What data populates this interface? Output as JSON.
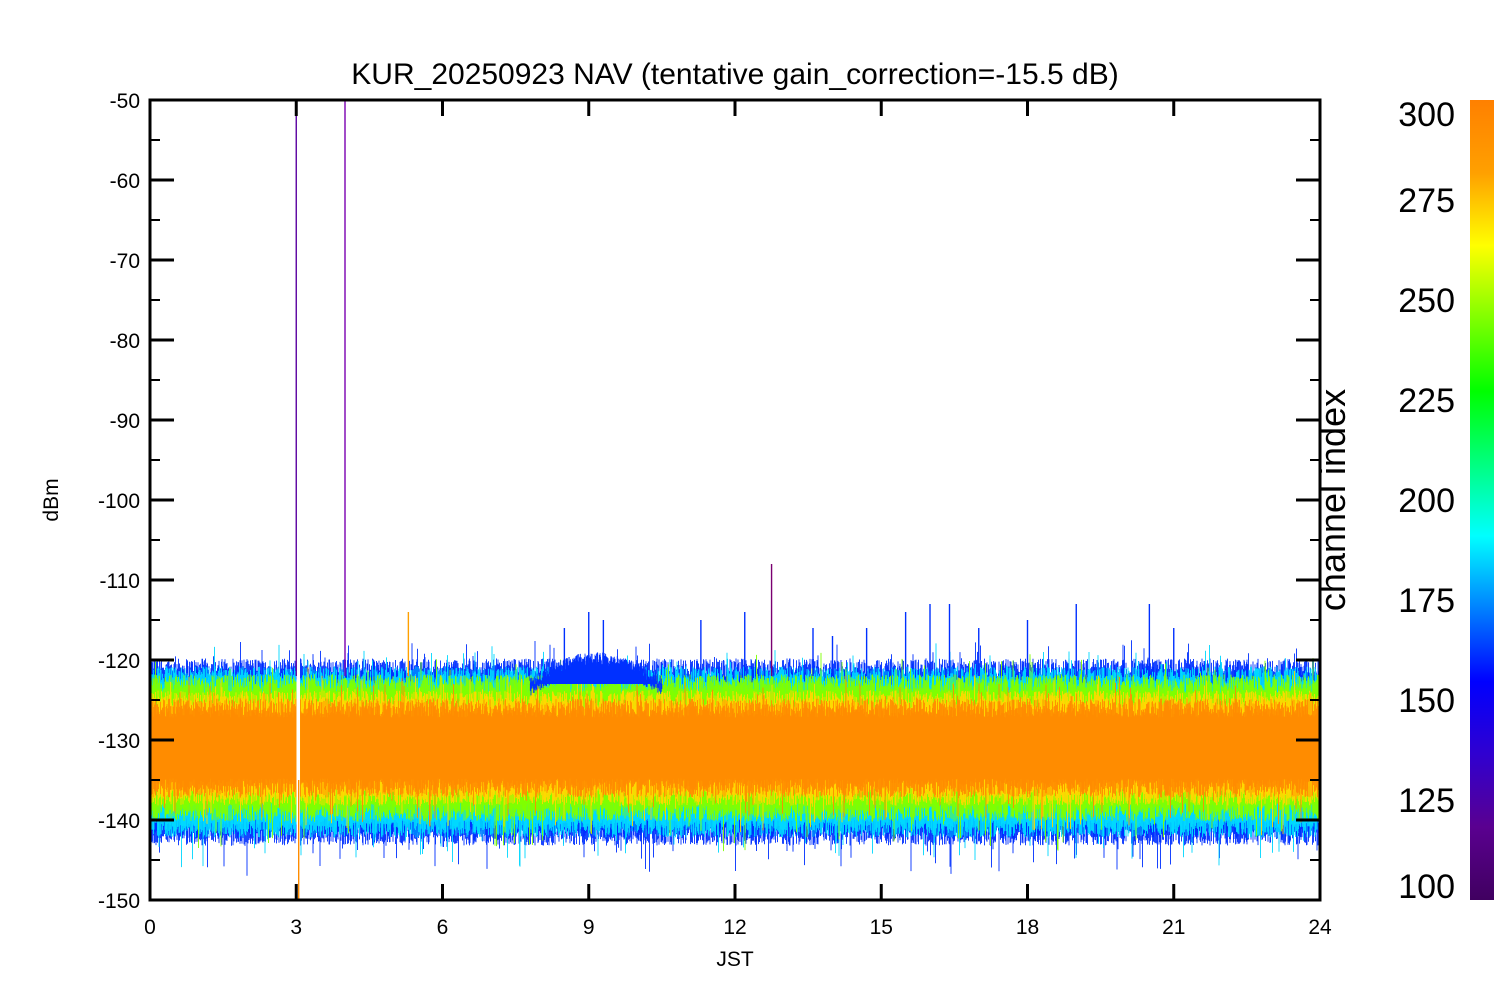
{
  "chart_data": {
    "type": "line",
    "title": "KUR_20250923 NAV (tentative gain_correction=-15.5 dB)",
    "xlabel": "JST",
    "ylabel": "dBm",
    "xlim": [
      0,
      24
    ],
    "ylim": [
      -150,
      -50
    ],
    "xticks": [
      "0",
      "3",
      "6",
      "9",
      "12",
      "15",
      "18",
      "21",
      "24"
    ],
    "yticks": [
      "-50",
      "-60",
      "-70",
      "-80",
      "-90",
      "-100",
      "-110",
      "-120",
      "-130",
      "-140",
      "-150"
    ],
    "grid": false,
    "bands": [
      {
        "name": "channel ~300 (orange core)",
        "color": "#ff8c00",
        "y_low": -136,
        "y_high": -126
      },
      {
        "name": "channel ~275 (yellow)",
        "color": "#ffd800",
        "y_low": -137,
        "y_high": -125
      },
      {
        "name": "channel ~250 (green)",
        "color": "#7fff00",
        "y_low": -139,
        "y_high": -123
      },
      {
        "name": "channel ~175 (cyan)",
        "color": "#00d8ff",
        "y_low": -141,
        "y_high": -122
      },
      {
        "name": "channel ~150 (blue)",
        "color": "#0030ff",
        "y_low": -142,
        "y_high": -121
      }
    ],
    "gap_hours": [
      3.0,
      3.08
    ],
    "spikes": [
      {
        "x": 3.0,
        "y": -50,
        "color": "#5a00a0"
      },
      {
        "x": 4.0,
        "y": -50,
        "color": "#7a00b0"
      },
      {
        "x": 3.05,
        "y": -150,
        "color": "#ff8c00"
      },
      {
        "x": 5.3,
        "y": -114,
        "color": "#ffa000"
      },
      {
        "x": 8.5,
        "y": -116,
        "color": "#0030ff"
      },
      {
        "x": 9.0,
        "y": -114,
        "color": "#0030ff"
      },
      {
        "x": 9.3,
        "y": -115,
        "color": "#0030ff"
      },
      {
        "x": 11.3,
        "y": -115,
        "color": "#0030ff"
      },
      {
        "x": 12.2,
        "y": -114,
        "color": "#0030ff"
      },
      {
        "x": 12.75,
        "y": -108,
        "color": "#7a0070"
      },
      {
        "x": 13.6,
        "y": -116,
        "color": "#0030ff"
      },
      {
        "x": 14.0,
        "y": -117,
        "color": "#0030ff"
      },
      {
        "x": 14.7,
        "y": -116,
        "color": "#0030ff"
      },
      {
        "x": 15.5,
        "y": -114,
        "color": "#0030ff"
      },
      {
        "x": 16.0,
        "y": -113,
        "color": "#0030ff"
      },
      {
        "x": 16.4,
        "y": -113,
        "color": "#0030ff"
      },
      {
        "x": 17.0,
        "y": -116,
        "color": "#0030ff"
      },
      {
        "x": 18.0,
        "y": -115,
        "color": "#0030ff"
      },
      {
        "x": 19.0,
        "y": -113,
        "color": "#0030ff"
      },
      {
        "x": 20.5,
        "y": -113,
        "color": "#0030ff"
      },
      {
        "x": 21.0,
        "y": -116,
        "color": "#0030ff"
      }
    ],
    "hump": {
      "x_start": 7.8,
      "x_end": 10.5,
      "peak_y": -119,
      "color": "#0030ff"
    },
    "colorbar": {
      "label": "channel index",
      "range": [
        100,
        300
      ],
      "ticks": [
        "300",
        "275",
        "250",
        "225",
        "200",
        "175",
        "150",
        "125",
        "100"
      ],
      "colors": [
        "#ff8000",
        "#ffa000",
        "#ffff00",
        "#80ff00",
        "#00ff00",
        "#00ff80",
        "#00ffff",
        "#0080ff",
        "#0000ff",
        "#3000d0",
        "#5a0090",
        "#400060"
      ]
    }
  }
}
